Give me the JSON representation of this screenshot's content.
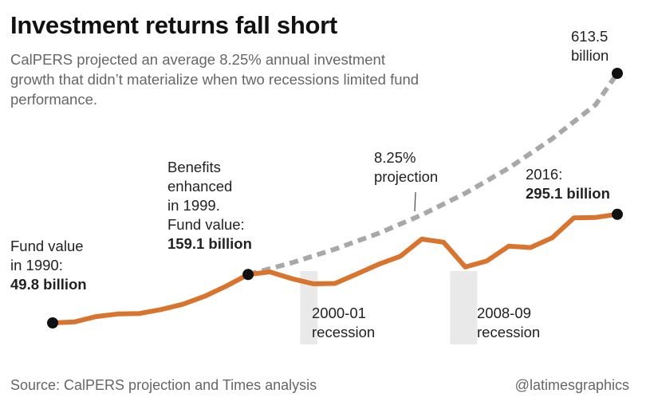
{
  "header": {
    "title": "Investment returns fall short",
    "subtitle": "CalPERS projected an average 8.25% annual investment growth that didn’t materialize when two recessions limited fund performance."
  },
  "chart_data": {
    "type": "line",
    "ylabel": "",
    "xlabel": "",
    "x_range": [
      1990,
      2016
    ],
    "y_unit": "billion",
    "series": [
      {
        "name": "",
        "color": "#d9742f",
        "points": [
          [
            1990,
            49.8
          ],
          [
            1991,
            52
          ],
          [
            1992,
            64
          ],
          [
            1993,
            70
          ],
          [
            1994,
            71
          ],
          [
            1995,
            80
          ],
          [
            1996,
            92
          ],
          [
            1997,
            110
          ],
          [
            1998,
            133
          ],
          [
            1999,
            159.1
          ],
          [
            2000,
            165
          ],
          [
            2001,
            150
          ],
          [
            2002,
            138
          ],
          [
            2003,
            139
          ],
          [
            2004,
            160
          ],
          [
            2005,
            182
          ],
          [
            2006,
            200
          ],
          [
            2007,
            239
          ],
          [
            2008,
            232
          ],
          [
            2009,
            176
          ],
          [
            2010,
            190
          ],
          [
            2011,
            223
          ],
          [
            2012,
            220
          ],
          [
            2013,
            242
          ],
          [
            2014,
            287
          ],
          [
            2015,
            288
          ],
          [
            2016,
            295.1
          ]
        ]
      },
      {
        "name": "",
        "style": "dashed",
        "color": "#a8a8a8",
        "points": [
          [
            1999,
            159.1
          ],
          [
            2001,
            185.5
          ],
          [
            2003,
            216.3
          ],
          [
            2005,
            252.1
          ],
          [
            2007,
            293.9
          ],
          [
            2009,
            342.6
          ],
          [
            2011,
            399.4
          ],
          [
            2013,
            465.6
          ],
          [
            2015,
            542.8
          ],
          [
            2016,
            613.5
          ]
        ]
      }
    ],
    "recessions": [
      {
        "start": 2001.4,
        "end": 2002.2,
        "label_line1": "2000-01",
        "label_line2": "recession"
      },
      {
        "start": 2008.3,
        "end": 2009.55,
        "label_line1": "2008-09",
        "label_line2": "recession"
      }
    ],
    "annotations": {
      "start": {
        "line1": "Fund value",
        "line2": "in 1990:",
        "value": "49.8 billion"
      },
      "mid": {
        "line1": "Benefits",
        "line2": "enhanced",
        "line3": "in 1999.",
        "line4": "Fund value:",
        "value": "159.1 billion"
      },
      "projection": {
        "line1": "8.25%",
        "line2": "projection"
      },
      "end": {
        "line1": "2016:",
        "value": "295.1 billion"
      },
      "proj_end": {
        "line1": "613.5",
        "line2": "billion"
      }
    }
  },
  "footer": {
    "source": "Source: CalPERS projection and Times analysis",
    "credit": "@latimesgraphics"
  },
  "colors": {
    "actual": "#d9742f",
    "projection": "#a8a8a8",
    "recession_band": "#e9e9e9",
    "dot": "#111111"
  }
}
